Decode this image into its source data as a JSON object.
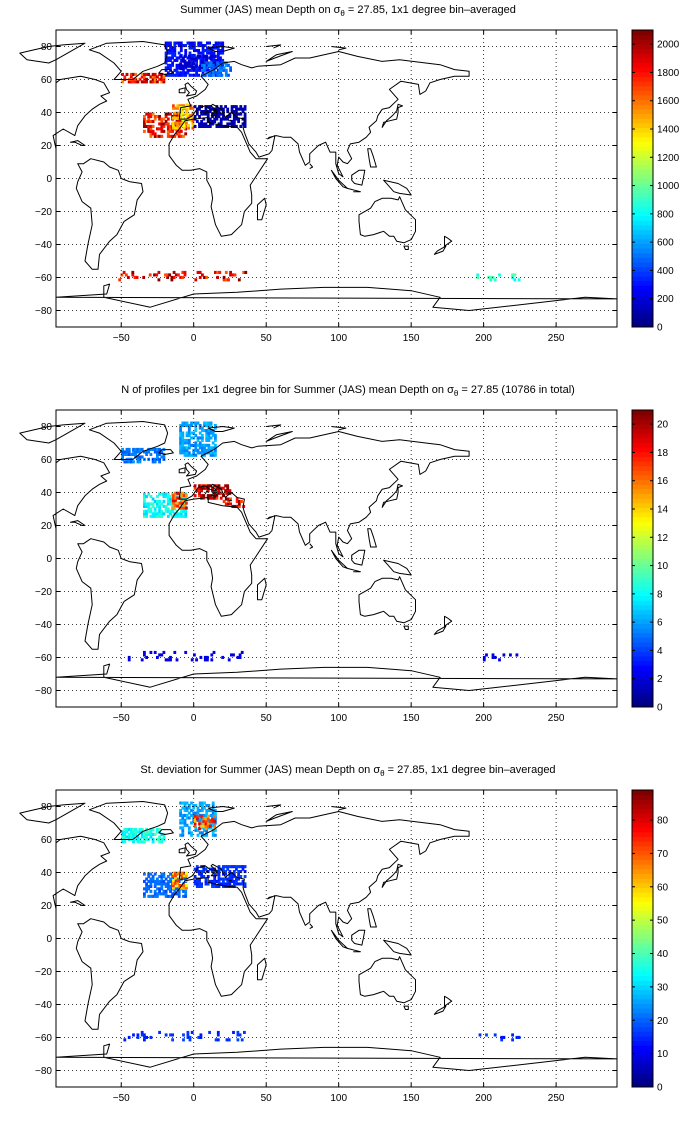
{
  "chart_data": [
    {
      "type": "heatmap",
      "title": "Summer (JAS) mean Depth on σθ = 27.85, 1x1 degree bin–averaged",
      "title_parts": {
        "pre": "Summer (JAS) mean Depth on σ",
        "sub": "θ",
        "post": " = 27.85, 1x1 degree bin–averaged"
      },
      "xlim": [
        -95,
        292
      ],
      "ylim": [
        -90,
        90
      ],
      "x_ticks": [
        -50,
        0,
        50,
        100,
        150,
        200,
        250
      ],
      "y_ticks": [
        80,
        60,
        40,
        20,
        0,
        -20,
        -40,
        -60,
        -80
      ],
      "grid": true,
      "colorbar": {
        "min": 0,
        "max": 2100,
        "ticks": [
          0,
          200,
          400,
          600,
          800,
          1000,
          1200,
          1400,
          1600,
          1800,
          2000
        ]
      },
      "regions": [
        {
          "x0": -20,
          "x1": 20,
          "y0": 62,
          "y1": 82,
          "value": 300
        },
        {
          "x0": -10,
          "x1": 15,
          "y0": 66,
          "y1": 74,
          "value": 150
        },
        {
          "x0": 5,
          "x1": 25,
          "y0": 62,
          "y1": 70,
          "value": 500
        },
        {
          "x0": -50,
          "x1": -20,
          "y0": 58,
          "y1": 64,
          "value": 1800
        },
        {
          "x0": -35,
          "x1": -5,
          "y0": 25,
          "y1": 40,
          "value": 1850
        },
        {
          "x0": -15,
          "x1": 0,
          "y0": 30,
          "y1": 45,
          "value": 1500
        },
        {
          "x0": -10,
          "x1": -5,
          "y0": 35,
          "y1": 45,
          "value": 1300
        },
        {
          "x0": 0,
          "x1": 35,
          "y0": 31,
          "y1": 44,
          "value": 100
        },
        {
          "x0": -55,
          "x1": 40,
          "y0": -62,
          "y1": -56,
          "value": 1900,
          "sparse": true
        },
        {
          "x0": 195,
          "x1": 225,
          "y0": -62,
          "y1": -58,
          "value": 900,
          "sparse": true
        }
      ]
    },
    {
      "type": "heatmap",
      "title": "N of profiles per 1x1 degree bin for Summer (JAS) mean Depth on σθ = 27.85 (10786 in total)",
      "title_parts": {
        "pre": "N of profiles per 1x1 degree bin for Summer (JAS) mean Depth on σ",
        "sub": "θ",
        "post": " = 27.85 (10786 in total)"
      },
      "xlim": [
        -95,
        292
      ],
      "ylim": [
        -90,
        90
      ],
      "x_ticks": [
        -50,
        0,
        50,
        100,
        150,
        200,
        250
      ],
      "y_ticks": [
        80,
        60,
        40,
        20,
        0,
        -20,
        -40,
        -60,
        -80
      ],
      "grid": true,
      "colorbar": {
        "min": 0,
        "max": 21,
        "ticks": [
          0,
          2,
          4,
          6,
          8,
          10,
          12,
          14,
          16,
          18,
          20
        ]
      },
      "regions": [
        {
          "x0": -10,
          "x1": 15,
          "y0": 62,
          "y1": 82,
          "value": 6
        },
        {
          "x0": -50,
          "x1": -20,
          "y0": 58,
          "y1": 66,
          "value": 5
        },
        {
          "x0": -35,
          "x1": -5,
          "y0": 25,
          "y1": 40,
          "value": 8
        },
        {
          "x0": -15,
          "x1": -5,
          "y0": 30,
          "y1": 40,
          "value": 17
        },
        {
          "x0": 0,
          "x1": 25,
          "y0": 36,
          "y1": 44,
          "value": 20
        },
        {
          "x0": 20,
          "x1": 35,
          "y0": 31,
          "y1": 37,
          "value": 19
        },
        {
          "x0": -50,
          "x1": 40,
          "y0": -62,
          "y1": -56,
          "value": 2,
          "sparse": true
        },
        {
          "x0": 195,
          "x1": 225,
          "y0": -62,
          "y1": -58,
          "value": 2,
          "sparse": true
        }
      ]
    },
    {
      "type": "heatmap",
      "title": "St. deviation for Summer (JAS) mean Depth on σθ = 27.85, 1x1 degree bin–averaged",
      "title_parts": {
        "pre": "St. deviation for Summer (JAS) mean Depth on σ",
        "sub": "θ",
        "post": " = 27.85, 1x1 degree bin–averaged"
      },
      "xlim": [
        -95,
        292
      ],
      "ylim": [
        -90,
        90
      ],
      "x_ticks": [
        -50,
        0,
        50,
        100,
        150,
        200,
        250
      ],
      "y_ticks": [
        80,
        60,
        40,
        20,
        0,
        -20,
        -40,
        -60,
        -80
      ],
      "grid": true,
      "colorbar": {
        "min": 0,
        "max": 89,
        "ticks": [
          0,
          10,
          20,
          30,
          40,
          50,
          60,
          70,
          80
        ]
      },
      "regions": [
        {
          "x0": -10,
          "x1": 15,
          "y0": 62,
          "y1": 82,
          "value": 25
        },
        {
          "x0": 0,
          "x1": 15,
          "y0": 66,
          "y1": 74,
          "value": 70
        },
        {
          "x0": -50,
          "x1": -20,
          "y0": 58,
          "y1": 66,
          "value": 35
        },
        {
          "x0": -35,
          "x1": -5,
          "y0": 25,
          "y1": 40,
          "value": 20
        },
        {
          "x0": -15,
          "x1": -5,
          "y0": 30,
          "y1": 40,
          "value": 65
        },
        {
          "x0": 0,
          "x1": 35,
          "y0": 31,
          "y1": 44,
          "value": 15
        },
        {
          "x0": -50,
          "x1": 40,
          "y0": -62,
          "y1": -56,
          "value": 15,
          "sparse": true
        },
        {
          "x0": 195,
          "x1": 225,
          "y0": -62,
          "y1": -58,
          "value": 15,
          "sparse": true
        }
      ]
    }
  ]
}
